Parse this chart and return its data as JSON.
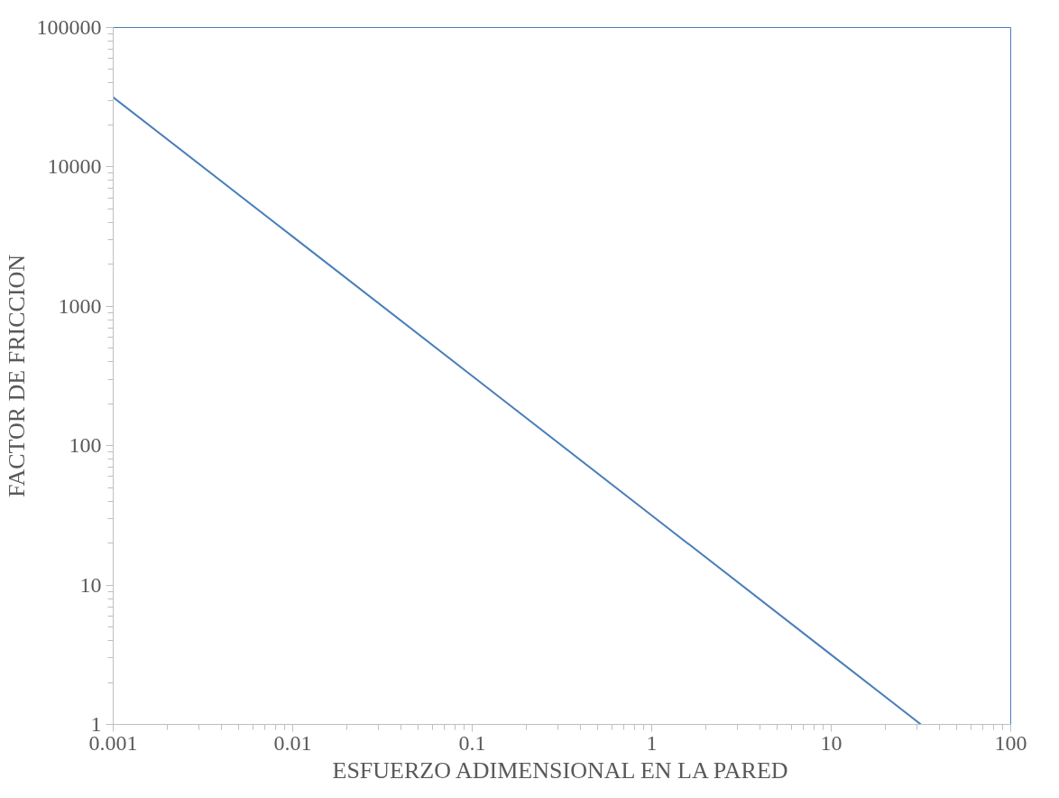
{
  "chart_data": {
    "type": "line",
    "xlabel": "ESFUERZO ADIMENSIONAL EN LA PARED",
    "ylabel": "FACTOR DE FRICCION",
    "log": "xy",
    "grid": false,
    "marker": "none",
    "line_style": "solid",
    "x": [
      0.001,
      0.01,
      0.1,
      1,
      10,
      31.6
    ],
    "series": [
      {
        "color": "#4a7ebb",
        "values": [
          31600,
          3160,
          316,
          31.6,
          3.16,
          1
        ]
      }
    ],
    "xlim": [
      0.001,
      100
    ],
    "ylim": [
      1,
      100000
    ],
    "xticks": [
      0.001,
      0.01,
      0.1,
      1,
      10,
      100
    ],
    "yticks": [
      1,
      10,
      100,
      1000,
      10000,
      100000
    ]
  }
}
